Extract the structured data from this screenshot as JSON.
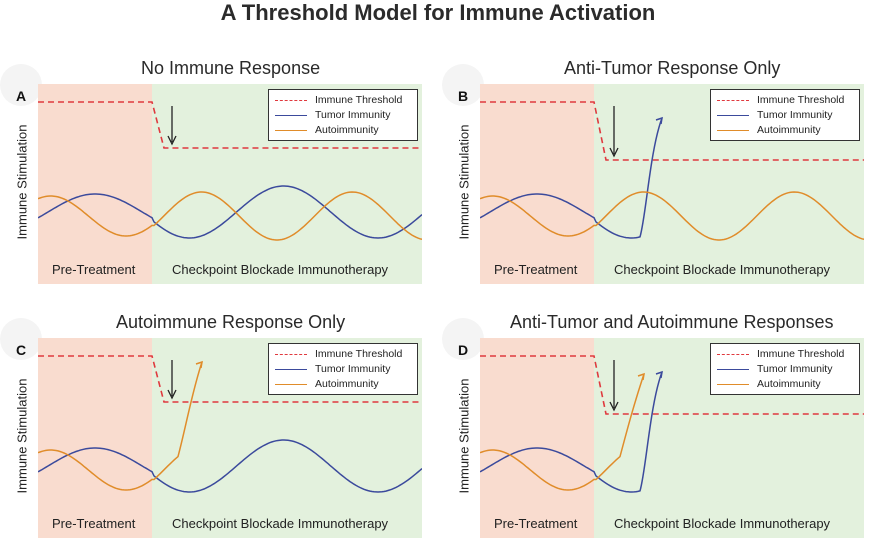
{
  "title": "A Threshold Model for Immune Activation",
  "colors": {
    "pre_treatment_bg": "#f9dccf",
    "checkpoint_bg": "#e3f1dd",
    "threshold": "#e0393e",
    "tumor": "#3b4a9c",
    "autoimmunity": "#e08c2a",
    "arrow": "#222222"
  },
  "shared": {
    "ylabel": "Immune Stimulation",
    "pre_treatment_label": "Pre-Treatment",
    "checkpoint_label": "Checkpoint Blockade Immunotherapy",
    "legend": {
      "threshold": "Immune Threshold",
      "tumor": "Tumor Immunity",
      "autoimmunity": "Autoimmunity"
    }
  },
  "panels": [
    {
      "letter": "A",
      "title": "No Immune Response",
      "tumor_escapes": false,
      "autoimmunity_escapes": false
    },
    {
      "letter": "B",
      "title": "Anti-Tumor Response Only",
      "tumor_escapes": true,
      "autoimmunity_escapes": false
    },
    {
      "letter": "C",
      "title": "Autoimmune Response Only",
      "tumor_escapes": false,
      "autoimmunity_escapes": true
    },
    {
      "letter": "D",
      "title": "Anti-Tumor and Autoimmune Responses",
      "tumor_escapes": true,
      "autoimmunity_escapes": true
    }
  ]
}
